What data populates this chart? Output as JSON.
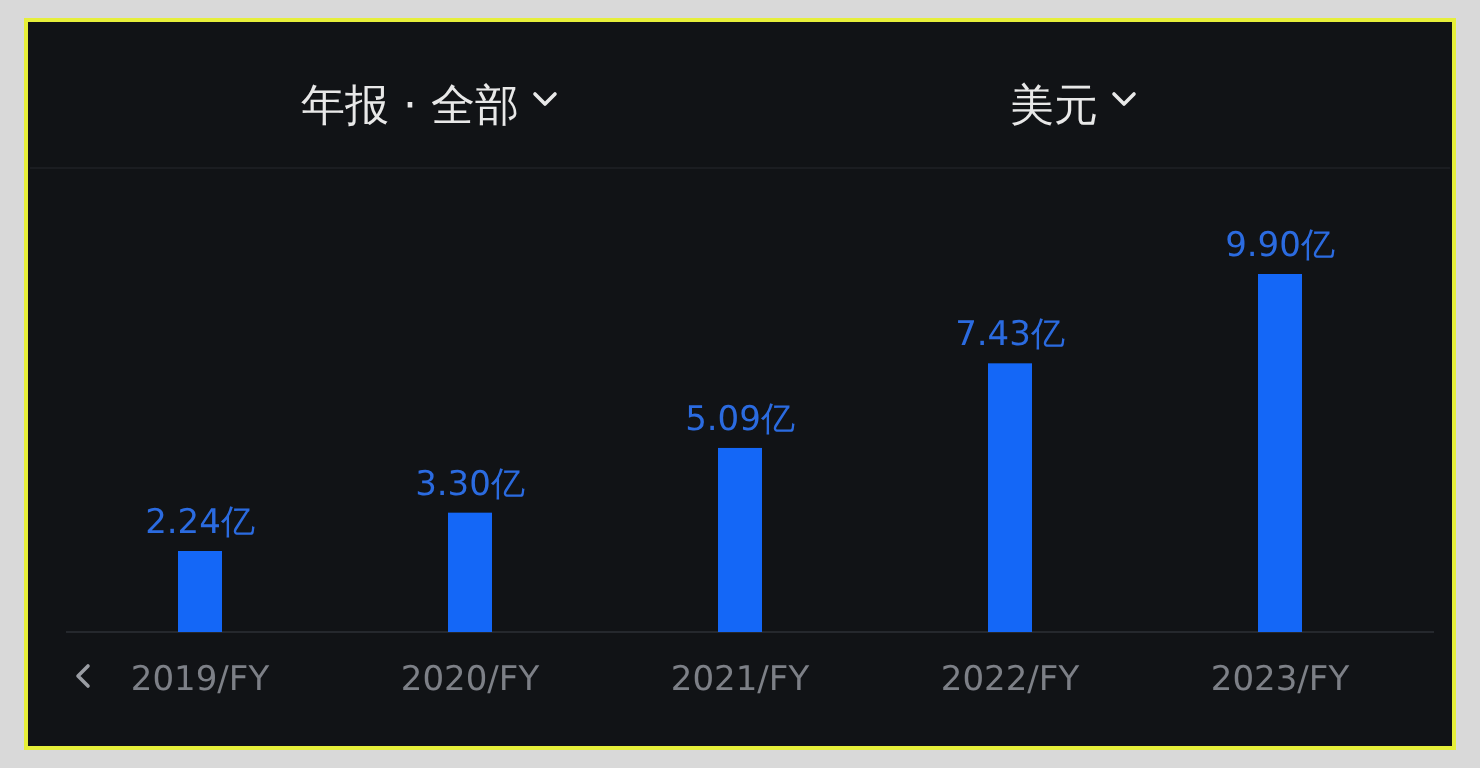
{
  "chart_data": {
    "type": "bar",
    "title": "年报 · 全部",
    "subtitle": "美元",
    "categories": [
      "2019/FY",
      "2020/FY",
      "2021/FY",
      "2022/FY",
      "2023/FY"
    ],
    "values": [
      2.24,
      3.3,
      5.09,
      7.43,
      9.9
    ],
    "value_labels": [
      "2.24亿",
      "3.30亿",
      "5.09亿",
      "7.43亿",
      "9.90亿"
    ],
    "color": "#1467f7"
  }
}
